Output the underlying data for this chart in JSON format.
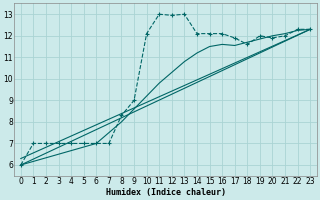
{
  "xlabel": "Humidex (Indice chaleur)",
  "bg_color": "#cceaea",
  "grid_color": "#aad4d4",
  "line_color": "#006666",
  "xlim": [
    -0.5,
    23.5
  ],
  "ylim": [
    5.5,
    13.5
  ],
  "xticks": [
    0,
    1,
    2,
    3,
    4,
    5,
    6,
    7,
    8,
    9,
    10,
    11,
    12,
    13,
    14,
    15,
    16,
    17,
    18,
    19,
    20,
    21,
    22,
    23
  ],
  "yticks": [
    6,
    7,
    8,
    9,
    10,
    11,
    12,
    13
  ],
  "main_series": [
    [
      0,
      6.0
    ],
    [
      1,
      7.0
    ],
    [
      2,
      7.0
    ],
    [
      3,
      7.0
    ],
    [
      4,
      7.0
    ],
    [
      5,
      7.0
    ],
    [
      6,
      7.0
    ],
    [
      7,
      7.0
    ],
    [
      8,
      8.3
    ],
    [
      9,
      9.0
    ],
    [
      10,
      12.1
    ],
    [
      11,
      13.0
    ],
    [
      12,
      12.95
    ],
    [
      13,
      13.0
    ],
    [
      14,
      12.1
    ],
    [
      15,
      12.1
    ],
    [
      16,
      12.1
    ],
    [
      17,
      11.9
    ],
    [
      18,
      11.6
    ],
    [
      19,
      12.0
    ],
    [
      20,
      11.9
    ],
    [
      21,
      12.0
    ],
    [
      22,
      12.3
    ],
    [
      23,
      12.3
    ]
  ],
  "line_a": [
    [
      0,
      6.0
    ],
    [
      23,
      12.3
    ]
  ],
  "line_b": [
    [
      0,
      6.3
    ],
    [
      23,
      12.3
    ]
  ],
  "line_c": [
    [
      0,
      6.0
    ],
    [
      6,
      7.0
    ],
    [
      7,
      7.5
    ],
    [
      8,
      8.0
    ],
    [
      9,
      8.6
    ],
    [
      10,
      9.2
    ],
    [
      11,
      9.8
    ],
    [
      12,
      10.3
    ],
    [
      13,
      10.8
    ],
    [
      14,
      11.2
    ],
    [
      15,
      11.5
    ],
    [
      16,
      11.6
    ],
    [
      17,
      11.55
    ],
    [
      18,
      11.7
    ],
    [
      19,
      11.85
    ],
    [
      20,
      12.0
    ],
    [
      21,
      12.1
    ],
    [
      22,
      12.25
    ],
    [
      23,
      12.3
    ]
  ]
}
